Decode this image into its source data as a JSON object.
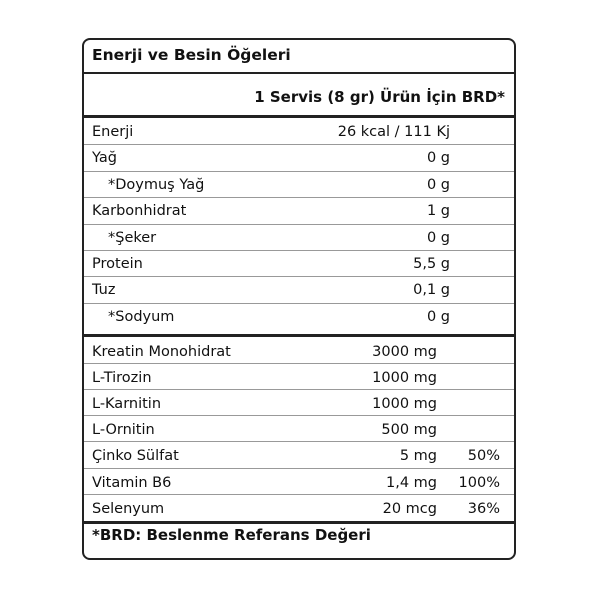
{
  "title": "Enerji ve Besin Öğeleri",
  "header": "1 Servis (8 gr) Ürün İçin BRD*",
  "rows": [
    [
      "Enerji",
      "26 kcal / 111 Kj"
    ],
    [
      "Yağ",
      "0 g"
    ],
    [
      "*Doymuş Yağ",
      "0 g"
    ],
    [
      "Karbonhidrat",
      "1 g"
    ],
    [
      "*Şeker",
      "0 g"
    ],
    [
      "Protein",
      "5,5 g"
    ],
    [
      "Tuz",
      "0,1 g"
    ],
    [
      "*Sodyum",
      "0 g"
    ]
  ],
  "rows2": [
    [
      "Kreatin Monohidrat",
      "3000 mg"
    ],
    [
      "L-Tirozin",
      "1000 mg"
    ],
    [
      "L-Karnitin",
      "1000 mg"
    ],
    [
      "L-Ornitin",
      "500 mg"
    ],
    [
      "Çinko Sülfat",
      "5 mg",
      "50%"
    ],
    [
      "Vitamin B6",
      "1,4 mg",
      "100%"
    ],
    [
      "Selenyum",
      "20 mcg",
      "36%"
    ]
  ],
  "footer": "*BRD: Beslenme Referans Değeri"
}
